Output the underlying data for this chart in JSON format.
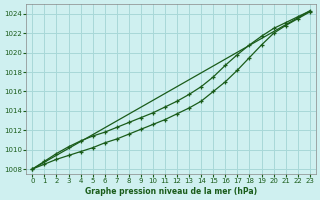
{
  "xlabel": "Graphe pression niveau de la mer (hPa)",
  "bg_color": "#cff0f0",
  "grid_color": "#a8d8d8",
  "line_color": "#1a5c1a",
  "xlim": [
    -0.5,
    23.5
  ],
  "ylim": [
    1007.5,
    1025.0
  ],
  "yticks": [
    1008,
    1010,
    1012,
    1014,
    1016,
    1018,
    1020,
    1022,
    1024
  ],
  "xticks": [
    0,
    1,
    2,
    3,
    4,
    5,
    6,
    7,
    8,
    9,
    10,
    11,
    12,
    13,
    14,
    15,
    16,
    17,
    18,
    19,
    20,
    21,
    22,
    23
  ],
  "series1_x": [
    0,
    1,
    2,
    3,
    4,
    5,
    6,
    7,
    8,
    9,
    10,
    11,
    12,
    13,
    14,
    15,
    16,
    17,
    18,
    19,
    20,
    21,
    22,
    23
  ],
  "series1_y": [
    1008.0,
    1008.5,
    1009.0,
    1009.4,
    1009.8,
    1010.2,
    1010.7,
    1011.1,
    1011.6,
    1012.1,
    1012.6,
    1013.1,
    1013.7,
    1014.3,
    1015.0,
    1016.0,
    1017.0,
    1018.2,
    1019.5,
    1020.8,
    1022.0,
    1022.8,
    1023.5,
    1024.2
  ],
  "series2_x": [
    0,
    1,
    2,
    3,
    4,
    5,
    6,
    7,
    8,
    9,
    10,
    11,
    12,
    13,
    14,
    15,
    16,
    17,
    18,
    19,
    20,
    21,
    22,
    23
  ],
  "series2_y": [
    1008.0,
    1008.8,
    1009.6,
    1010.3,
    1010.9,
    1011.4,
    1011.8,
    1012.3,
    1012.8,
    1013.3,
    1013.8,
    1014.4,
    1015.0,
    1015.7,
    1016.5,
    1017.5,
    1018.7,
    1019.8,
    1020.8,
    1021.7,
    1022.5,
    1023.1,
    1023.7,
    1024.3
  ],
  "series3_x": [
    0,
    23
  ],
  "series3_y": [
    1008.0,
    1024.3
  ]
}
